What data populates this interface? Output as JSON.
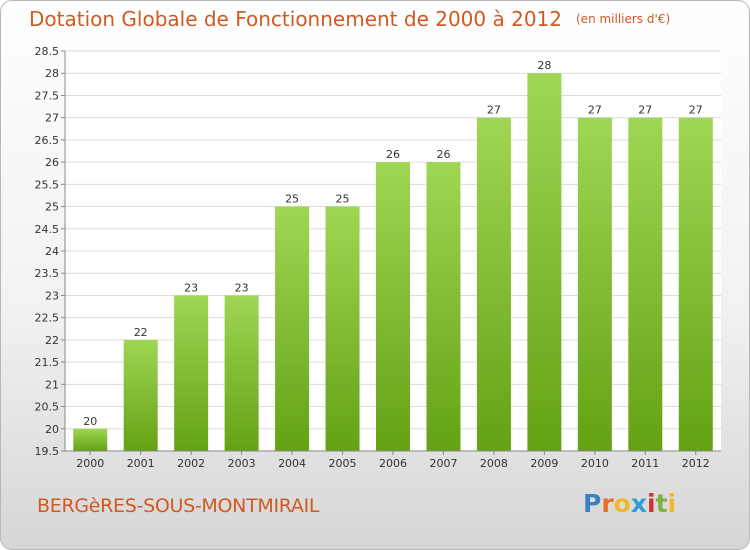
{
  "chart_data": {
    "type": "bar",
    "title": "Dotation Globale de Fonctionnement de 2000 à 2012",
    "unit_note": "(en milliers d'€)",
    "categories": [
      "2000",
      "2001",
      "2002",
      "2003",
      "2004",
      "2005",
      "2006",
      "2007",
      "2008",
      "2009",
      "2010",
      "2011",
      "2012"
    ],
    "values": [
      20,
      22,
      23,
      23,
      25,
      25,
      26,
      26,
      27,
      28,
      27,
      27,
      27
    ],
    "ylim": [
      19.5,
      28.5
    ],
    "yticks": [
      19.5,
      20,
      20.5,
      21,
      21.5,
      22,
      22.5,
      23,
      23.5,
      24,
      24.5,
      25,
      25.5,
      26,
      26.5,
      27,
      27.5,
      28,
      28.5
    ],
    "grid": true,
    "bar_color": "#8cc63f"
  },
  "footer": {
    "commune": "BERGèRES-SOUS-MONTMIRAIL",
    "logo_letters": [
      "P",
      "r",
      "o",
      "x",
      "i",
      "t",
      "i"
    ],
    "logo_colors": [
      "#3b7fc4",
      "#e7712b",
      "#f0b82c",
      "#2e9fd8",
      "#d0322e",
      "#7cb342",
      "#f0b82c"
    ]
  }
}
